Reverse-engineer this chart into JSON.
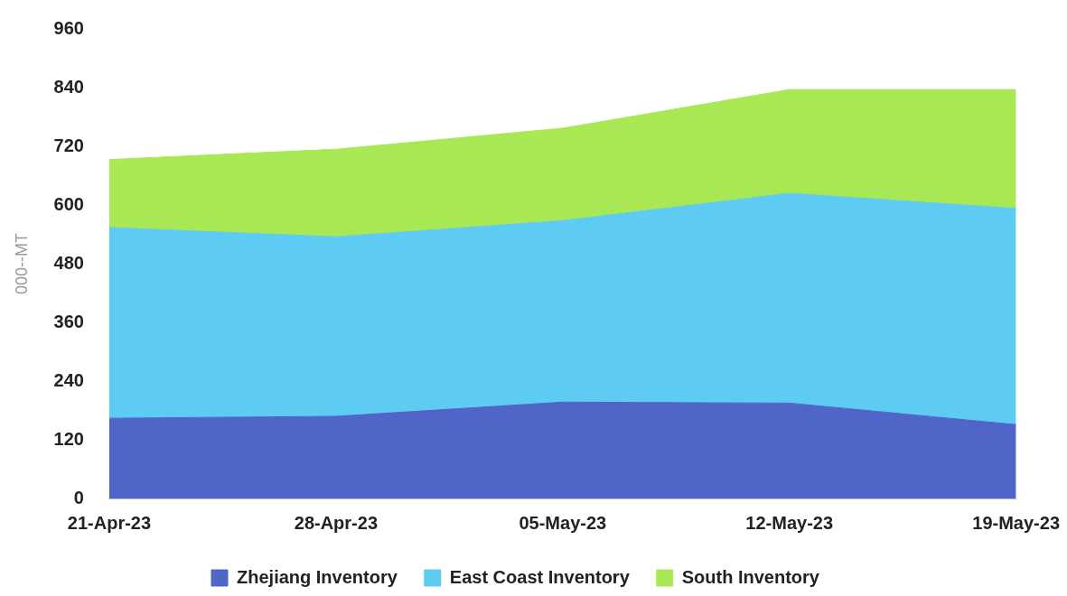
{
  "chart_data": {
    "type": "area",
    "stacked": true,
    "ylabel": "000--MT",
    "categories": [
      "21-Apr-23",
      "28-Apr-23",
      "05-May-23",
      "12-May-23",
      "19-May-23"
    ],
    "series": [
      {
        "name": "Zhejiang Inventory",
        "color": "#4f65c8",
        "values": [
          164,
          168,
          197,
          195,
          151
        ]
      },
      {
        "name": "East Coast Inventory",
        "color": "#5ecbf2",
        "values": [
          390,
          367,
          371,
          429,
          442
        ]
      },
      {
        "name": "South Inventory",
        "color": "#a8e854",
        "values": [
          139,
          179,
          189,
          212,
          243
        ]
      }
    ],
    "ylim": [
      0,
      960
    ],
    "yticks": [
      0,
      120,
      240,
      360,
      480,
      600,
      720,
      840,
      960
    ],
    "grid": false,
    "legend": "bottom"
  }
}
